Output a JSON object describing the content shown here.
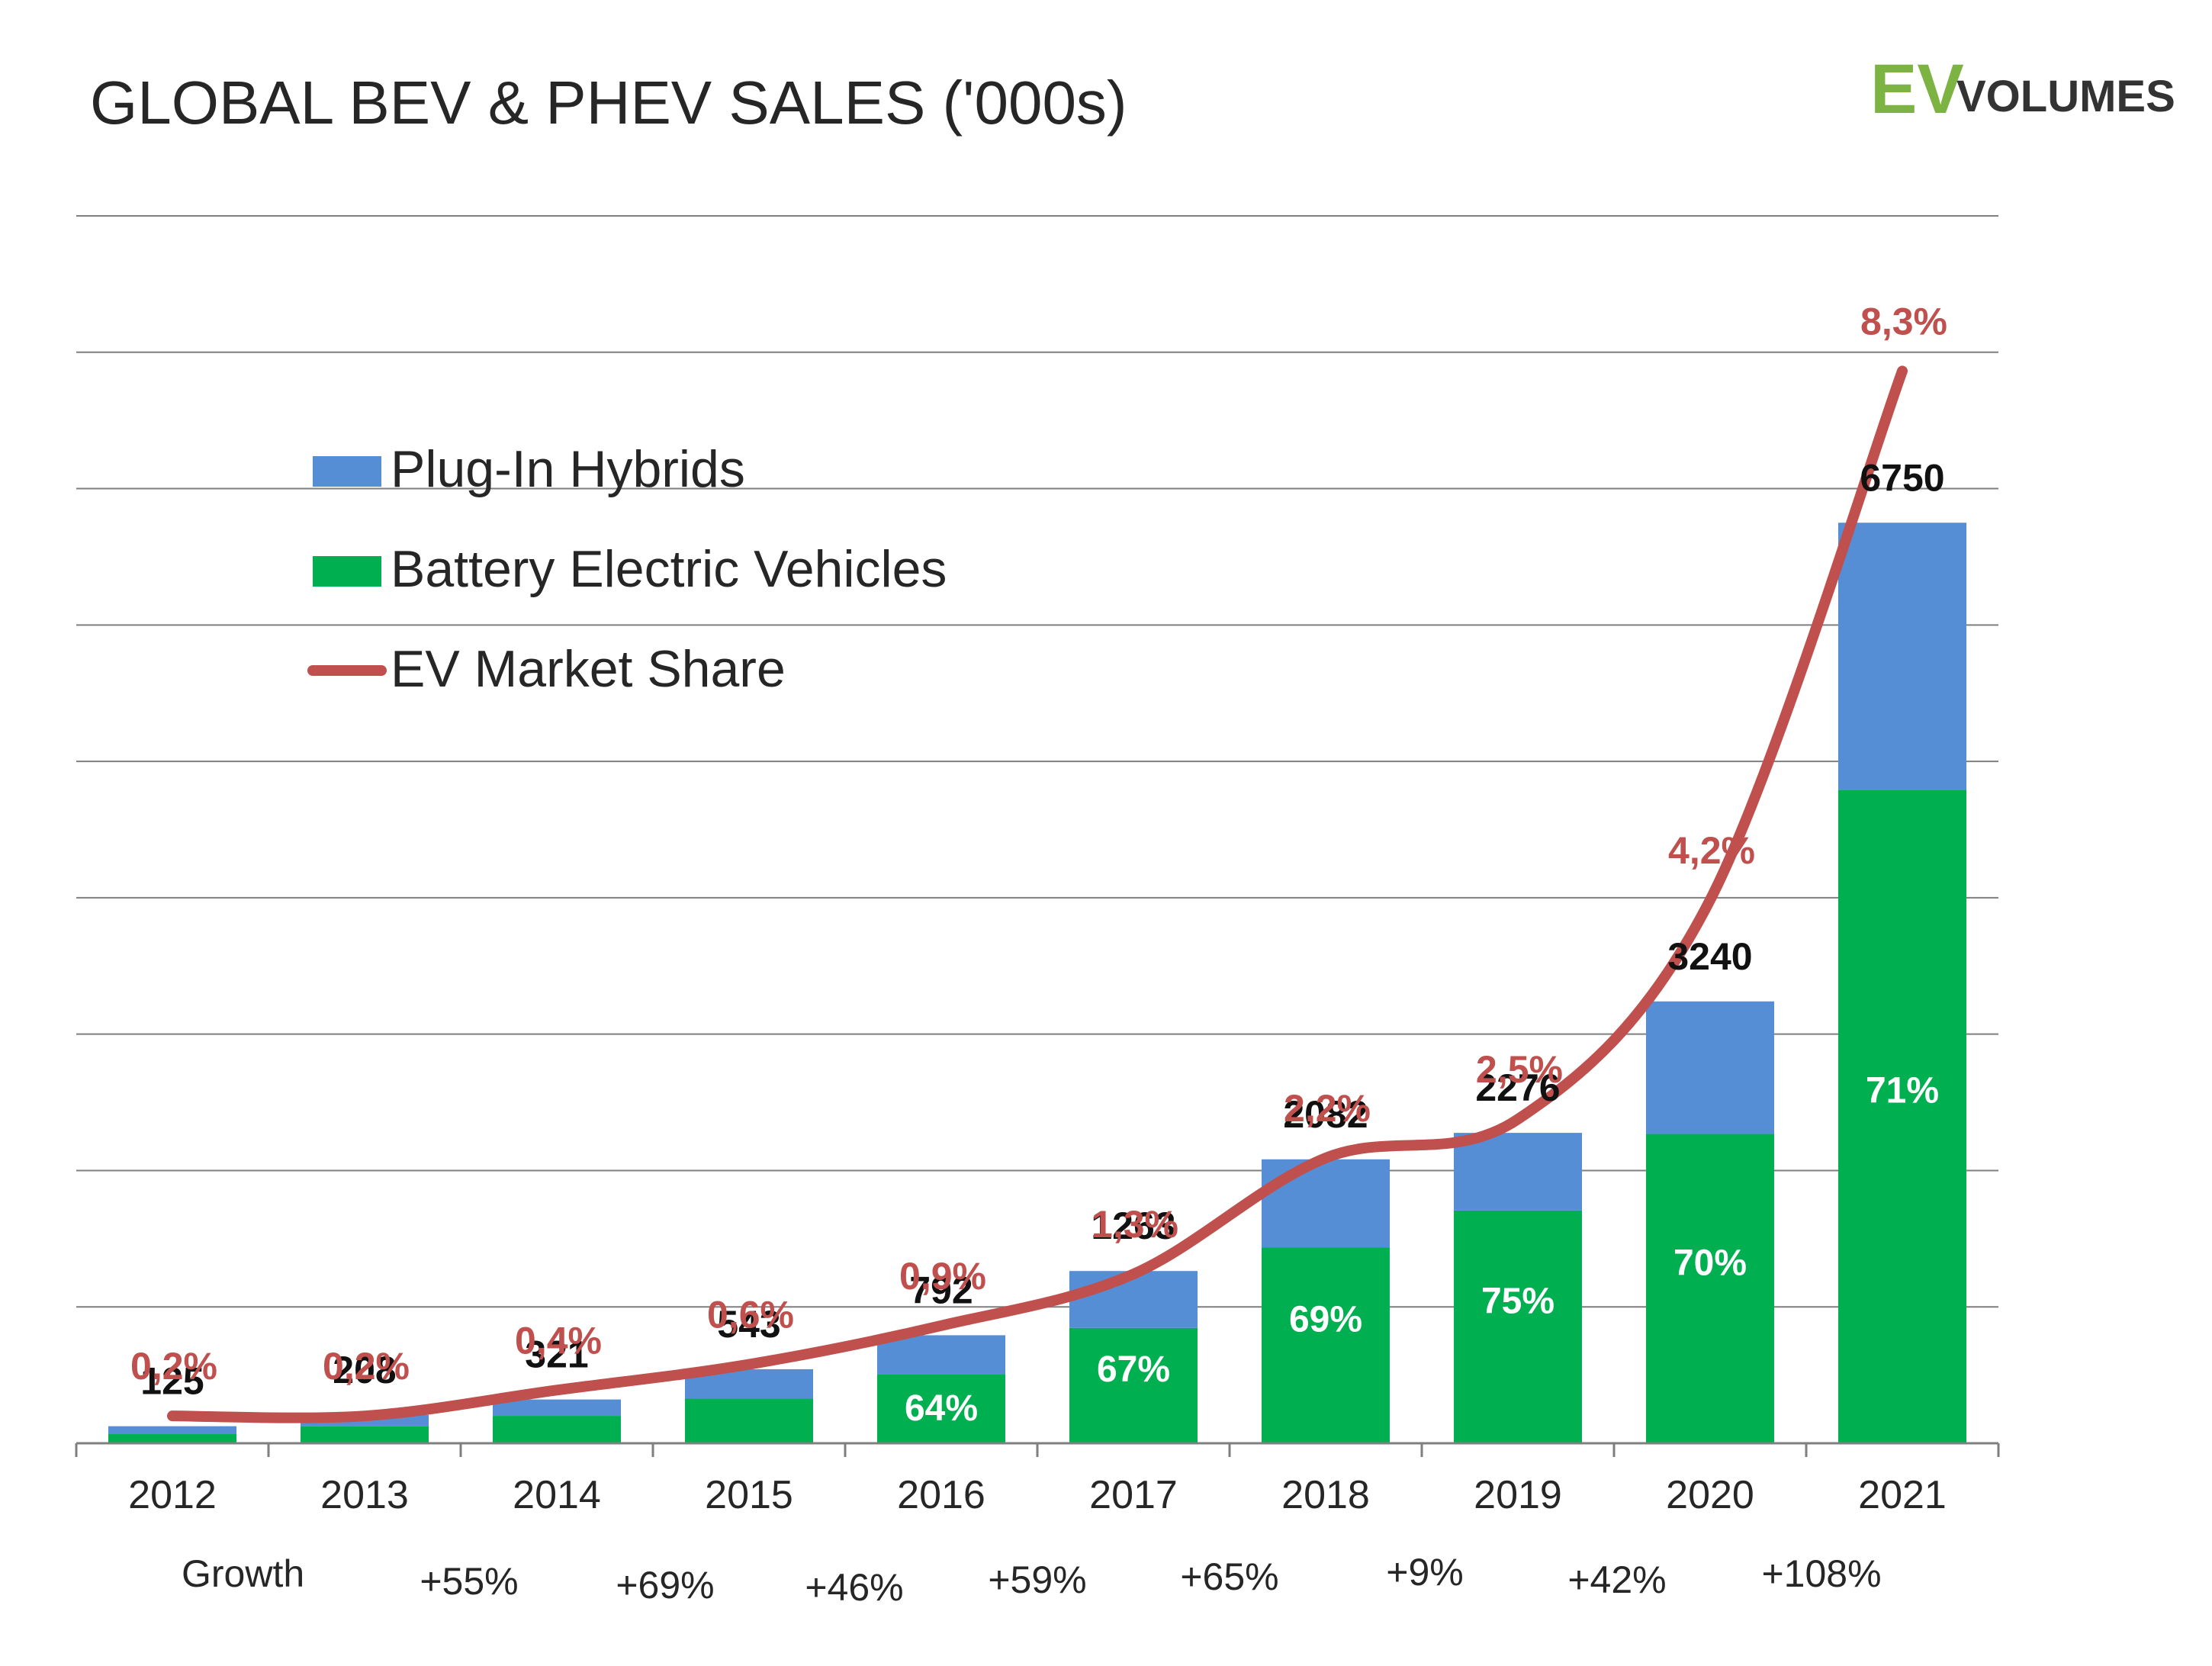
{
  "header": {
    "title": "GLOBAL BEV & PHEV SALES ('000s)",
    "logo_ev": "EV",
    "logo_volumes": "VOLUMES"
  },
  "colors": {
    "phev": "#558ed5",
    "bev": "#00b050",
    "market_share": "#c0504d",
    "grid": "#7f7f7f",
    "logo_green": "#7cb342"
  },
  "chart_data": {
    "type": "bar",
    "stacked": true,
    "categories": [
      "2012",
      "2013",
      "2014",
      "2015",
      "2016",
      "2017",
      "2018",
      "2019",
      "2020",
      "2021"
    ],
    "series": [
      {
        "name": "Plug-In Hybrids",
        "values": [
          58,
          83,
          120,
          216,
          285,
          417,
          645,
          569,
          972,
          1958
        ]
      },
      {
        "name": "Battery Electric Vehicles",
        "values": [
          67,
          125,
          201,
          327,
          507,
          846,
          1437,
          1707,
          2268,
          4792
        ]
      }
    ],
    "totals": [
      125,
      208,
      321,
      543,
      792,
      1263,
      2082,
      2276,
      3240,
      6750
    ],
    "total_labels": [
      "125",
      "208",
      "321",
      "543",
      "792",
      "1263",
      "2082",
      "2276",
      "3240",
      "6750"
    ],
    "bev_share_labels": [
      "",
      "",
      "",
      "",
      "64%",
      "67%",
      "69%",
      "75%",
      "70%",
      "71%"
    ],
    "market_share": {
      "name": "EV Market Share",
      "values": [
        0.2,
        0.2,
        0.4,
        0.6,
        0.9,
        1.3,
        2.2,
        2.5,
        4.2,
        8.3
      ],
      "labels": [
        "0,2%",
        "0,2%",
        "0,4%",
        "0,6%",
        "0,9%",
        "1,3%",
        "2,2%",
        "2,5%",
        "4,2%",
        "8,3%"
      ]
    },
    "growth_label": "Growth",
    "growth": [
      "+55%",
      "+69%",
      "+46%",
      "+59%",
      "+65%",
      "+9%",
      "+42%",
      "+108%"
    ],
    "ylim": [
      0,
      9000
    ],
    "grid": true,
    "legend": {
      "position": "upper-left",
      "items": [
        "Plug-In Hybrids",
        "Battery Electric Vehicles",
        "EV Market Share"
      ]
    }
  }
}
